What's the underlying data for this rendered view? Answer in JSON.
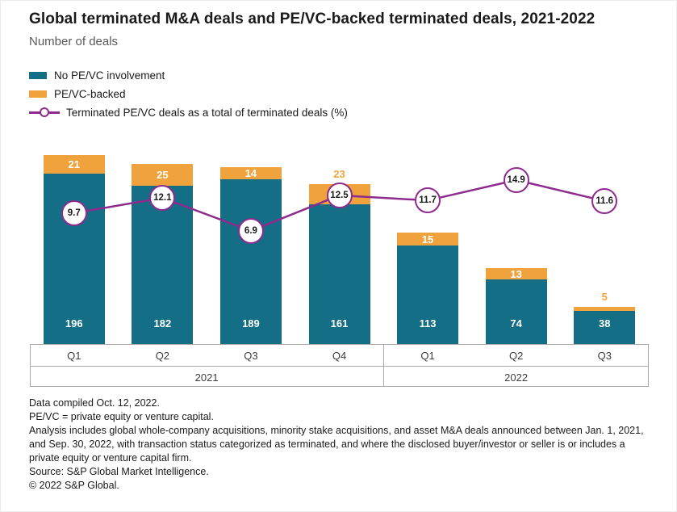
{
  "header": {
    "title": "Global terminated M&A deals and PE/VC-backed terminated deals, 2021-2022",
    "subtitle": "Number of deals"
  },
  "legend": [
    {
      "label": "No PE/VC involvement",
      "swatch": "teal-bar",
      "color": "#146E85"
    },
    {
      "label": "PE/VC-backed",
      "swatch": "orange-bar",
      "color": "#F0A33C"
    },
    {
      "label": "Terminated PE/VC deals as a total of terminated deals (%)",
      "swatch": "purple-line-marker",
      "color": "#8E2B8E"
    }
  ],
  "chart_data": {
    "type": "bar",
    "stacked": true,
    "categories": [
      "Q1",
      "Q2",
      "Q3",
      "Q4",
      "Q1",
      "Q2",
      "Q3"
    ],
    "year_groups": [
      {
        "label": "2021",
        "span": 4
      },
      {
        "label": "2022",
        "span": 3
      }
    ],
    "series": [
      {
        "name": "No PE/VC involvement",
        "values": [
          196,
          182,
          189,
          161,
          113,
          74,
          38
        ],
        "color": "#146E85"
      },
      {
        "name": "PE/VC-backed",
        "values": [
          21,
          25,
          14,
          23,
          15,
          13,
          5
        ],
        "color": "#F0A33C"
      }
    ],
    "line_series": {
      "name": "Terminated PE/VC deals as a total of terminated deals (%)",
      "values": [
        9.7,
        12.1,
        6.9,
        12.5,
        11.7,
        14.9,
        11.6
      ],
      "color": "#8E2B8E",
      "marker": "open-circle-with-value"
    },
    "pe_label_outside": [
      false,
      false,
      false,
      true,
      false,
      false,
      true
    ],
    "title": "Global terminated M&A deals and PE/VC-backed terminated deals, 2021-2022",
    "xlabel": "",
    "ylabel": "Number of deals",
    "ylim": [
      0,
      232
    ],
    "grid": false,
    "legend_position": "top-left"
  },
  "footnotes": [
    "Data compiled Oct. 12, 2022.",
    "PE/VC = private equity or venture capital.",
    "Analysis includes global whole-company acquisitions, minority stake acquisitions, and asset M&A deals announced between Jan. 1, 2021, and Sep. 30, 2022, with transaction status categorized as terminated, and where the disclosed buyer/investor or seller is or includes a private equity or venture capital firm.",
    "Source: S&P Global Market Intelligence.",
    "© 2022 S&P Global."
  ]
}
